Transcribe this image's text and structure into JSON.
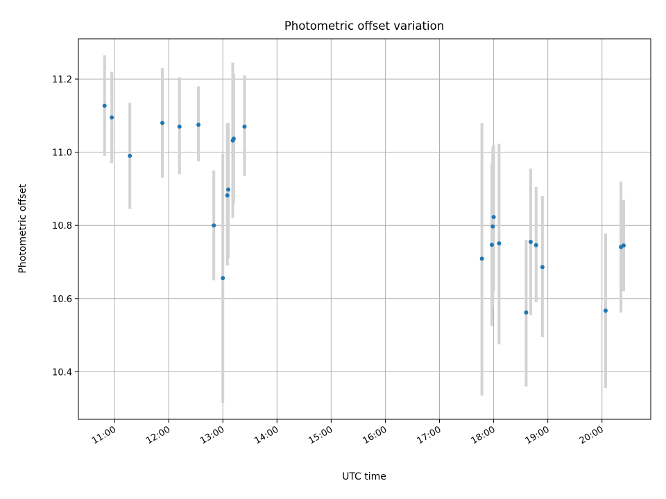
{
  "chart_data": {
    "type": "scatter",
    "title": "Photometric offset variation",
    "xlabel": "UTC time",
    "ylabel": "Photometric offset",
    "x_ticks": [
      "11:00",
      "12:00",
      "13:00",
      "14:00",
      "15:00",
      "16:00",
      "17:00",
      "18:00",
      "19:00",
      "20:00"
    ],
    "y_ticks": [
      "10.4",
      "10.6",
      "10.8",
      "11.0",
      "11.2"
    ],
    "xlim": [
      "10:20",
      "20:54"
    ],
    "ylim": [
      10.27,
      11.31
    ],
    "grid": true,
    "marker_color": "#1f77b4",
    "errorbar_color": "#d3d3d3",
    "points": [
      {
        "x": "10:49",
        "y": 11.127,
        "yerr_low": 10.99,
        "yerr_high": 11.265
      },
      {
        "x": "10:57",
        "y": 11.095,
        "yerr_low": 10.97,
        "yerr_high": 11.22
      },
      {
        "x": "11:17",
        "y": 10.99,
        "yerr_low": 10.845,
        "yerr_high": 11.135
      },
      {
        "x": "11:53",
        "y": 11.08,
        "yerr_low": 10.93,
        "yerr_high": 11.23
      },
      {
        "x": "12:12",
        "y": 11.07,
        "yerr_low": 10.94,
        "yerr_high": 11.205
      },
      {
        "x": "12:33",
        "y": 11.075,
        "yerr_low": 10.975,
        "yerr_high": 11.18
      },
      {
        "x": "12:50",
        "y": 10.8,
        "yerr_low": 10.65,
        "yerr_high": 10.95
      },
      {
        "x": "13:00",
        "y": 10.656,
        "yerr_low": 10.315,
        "yerr_high": 10.995
      },
      {
        "x": "13:05",
        "y": 10.882,
        "yerr_low": 10.69,
        "yerr_high": 11.08
      },
      {
        "x": "13:06",
        "y": 10.898,
        "yerr_low": 10.71,
        "yerr_high": 11.08
      },
      {
        "x": "13:11",
        "y": 11.032,
        "yerr_low": 10.82,
        "yerr_high": 11.245
      },
      {
        "x": "13:12",
        "y": 11.037,
        "yerr_low": 10.86,
        "yerr_high": 11.215
      },
      {
        "x": "13:24",
        "y": 11.07,
        "yerr_low": 10.935,
        "yerr_high": 11.21
      },
      {
        "x": "17:47",
        "y": 10.709,
        "yerr_low": 10.335,
        "yerr_high": 11.08
      },
      {
        "x": "17:58",
        "y": 10.747,
        "yerr_low": 10.525,
        "yerr_high": 10.97
      },
      {
        "x": "17:59",
        "y": 10.797,
        "yerr_low": 10.58,
        "yerr_high": 11.015
      },
      {
        "x": "18:00",
        "y": 10.823,
        "yerr_low": 10.62,
        "yerr_high": 11.02
      },
      {
        "x": "18:06",
        "y": 10.751,
        "yerr_low": 10.475,
        "yerr_high": 11.023
      },
      {
        "x": "18:36",
        "y": 10.562,
        "yerr_low": 10.36,
        "yerr_high": 10.76
      },
      {
        "x": "18:41",
        "y": 10.755,
        "yerr_low": 10.555,
        "yerr_high": 10.955
      },
      {
        "x": "18:47",
        "y": 10.746,
        "yerr_low": 10.59,
        "yerr_high": 10.905
      },
      {
        "x": "18:54",
        "y": 10.686,
        "yerr_low": 10.495,
        "yerr_high": 10.88
      },
      {
        "x": "20:04",
        "y": 10.567,
        "yerr_low": 10.355,
        "yerr_high": 10.778
      },
      {
        "x": "20:21",
        "y": 10.741,
        "yerr_low": 10.562,
        "yerr_high": 10.92
      },
      {
        "x": "20:24",
        "y": 10.745,
        "yerr_low": 10.62,
        "yerr_high": 10.87
      }
    ]
  }
}
